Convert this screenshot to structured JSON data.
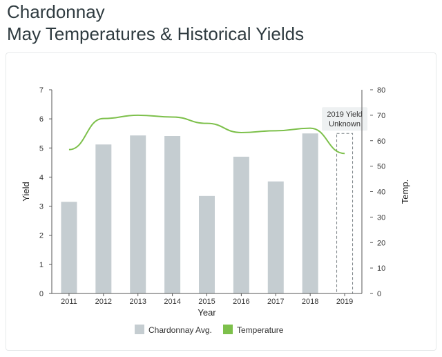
{
  "header": {
    "varietal": "Chardonnay",
    "title": "May Temperatures & Historical Yields"
  },
  "chart_data": {
    "type": "bar",
    "categories": [
      "2011",
      "2012",
      "2013",
      "2014",
      "2015",
      "2016",
      "2017",
      "2018",
      "2019"
    ],
    "series": [
      {
        "name": "Chardonnay Avg.",
        "axis": "left",
        "type": "bar",
        "color": "#c5cdd1",
        "values": [
          3.15,
          5.12,
          5.43,
          5.41,
          3.35,
          4.7,
          3.85,
          5.5,
          null
        ]
      },
      {
        "name": "Temperature",
        "axis": "right",
        "type": "line",
        "color": "#7dc04b",
        "values": [
          56.5,
          68.7,
          70.0,
          69.3,
          66.8,
          63.2,
          63.9,
          64.9,
          55.0
        ]
      }
    ],
    "xlabel": "Year",
    "ylabel": "Yield",
    "y2label": "Temp.",
    "ylim": [
      0,
      7
    ],
    "y2lim": [
      0,
      80
    ],
    "yticks": [
      "0",
      "1",
      "2",
      "3",
      "4",
      "5",
      "6",
      "7"
    ],
    "y2ticks": [
      "0",
      "10",
      "20",
      "30",
      "40",
      "50",
      "60",
      "70",
      "80"
    ],
    "annotation": {
      "category": "2019",
      "lines": [
        "2019 Yield",
        "Unknown"
      ]
    },
    "legend_position": "bottom-center",
    "grid": false
  }
}
